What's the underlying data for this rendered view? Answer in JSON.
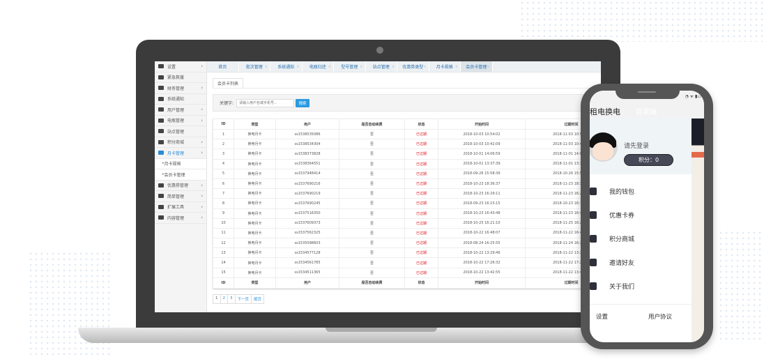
{
  "sidebar": {
    "items": [
      {
        "label": "设置",
        "chevron": true
      },
      {
        "label": "紧急救援",
        "chevron": false
      },
      {
        "label": "财务管理",
        "chevron": true
      },
      {
        "label": "系统通知",
        "chevron": false
      },
      {
        "label": "用户管理",
        "chevron": true
      },
      {
        "label": "电瓶管理",
        "chevron": true
      },
      {
        "label": "站点管理",
        "chevron": false
      },
      {
        "label": "积分商城",
        "chevron": true
      },
      {
        "label": "月卡管理",
        "chevron": true,
        "active": true
      },
      {
        "label": "月卡规格",
        "sub": true
      },
      {
        "label": "会员卡管理",
        "sub": true
      },
      {
        "label": "优惠券管理",
        "chevron": true
      },
      {
        "label": "简单管理",
        "chevron": true
      },
      {
        "label": "扩展工具",
        "chevron": true
      },
      {
        "label": "内容管理",
        "chevron": true
      }
    ]
  },
  "tabs": [
    {
      "label": "首页"
    },
    {
      "label": "批次管理"
    },
    {
      "label": "系统通知"
    },
    {
      "label": "电瓶归还"
    },
    {
      "label": "型号管理"
    },
    {
      "label": "站点管理"
    },
    {
      "label": "优惠券类型"
    },
    {
      "label": "月卡规格"
    },
    {
      "label": "会员卡管理",
      "active": true
    }
  ],
  "subtab": "会员卡列表",
  "search": {
    "label": "关键字:",
    "placeholder": "请输入用户名或手机号...",
    "button": "搜索"
  },
  "table": {
    "columns": [
      "ID",
      "类型",
      "用户",
      "是否自动续费",
      "状态",
      "开始时间",
      "过期时间"
    ],
    "rows": [
      [
        "1",
        "换电月卡",
        "ss1538535086",
        "否",
        "已过期",
        "2018-10-03 10:54:02",
        "2018-11-03 10:54:02"
      ],
      [
        "2",
        "换电月卡",
        "ss1538534304",
        "否",
        "已过期",
        "2018-10-03 10:42:09",
        "2018-11-03 10:42:09"
      ],
      [
        "3",
        "换电月卡",
        "ss1538373828",
        "否",
        "已过期",
        "2018-10-01 14:06:59",
        "2018-11-01 14:06:59"
      ],
      [
        "4",
        "换电月卡",
        "ss1538364551",
        "否",
        "已过期",
        "2018-10-01 13:37:39",
        "2018-11-01 13:37:39"
      ],
      [
        "5",
        "换电月卡",
        "ss1537948414",
        "否",
        "已过期",
        "2018-09-26 15:58:39",
        "2018-10-26 15:58:39"
      ],
      [
        "6",
        "换电月卡",
        "ss1537690216",
        "否",
        "已过期",
        "2018-10-23 18:36:37",
        "2018-11-23 18:36:37"
      ],
      [
        "7",
        "换电月卡",
        "ss1537690219",
        "否",
        "已过期",
        "2018-10-23 16:29:11",
        "2018-11-23 16:29:11"
      ],
      [
        "8",
        "换电月卡",
        "ss1537690245",
        "否",
        "已过期",
        "2018-09-23 16:15:15",
        "2018-10-23 16:15:15"
      ],
      [
        "9",
        "换电月卡",
        "ss1537516350",
        "否",
        "已过期",
        "2018-10-23 16:43:48",
        "2018-11-23 16:43:48"
      ],
      [
        "10",
        "换电月卡",
        "ss1537609373",
        "否",
        "已过期",
        "2018-10-25 16:21:10",
        "2018-11-25 16:21:10"
      ],
      [
        "11",
        "换电月卡",
        "ss1537562325",
        "否",
        "已过期",
        "2018-10-22 16:48:07",
        "2018-11-22 16:48:07"
      ],
      [
        "12",
        "换电月卡",
        "ss1535098603",
        "否",
        "已过期",
        "2018-08-24 16:25:55",
        "2018-11-24 16:25:55"
      ],
      [
        "13",
        "换电月卡",
        "ss1534577128",
        "否",
        "已过期",
        "2018-10-22 13:29:46",
        "2018-11-22 13:29:46"
      ],
      [
        "14",
        "换电月卡",
        "ss1534561785",
        "否",
        "已过期",
        "2018-10-22 17:26:32",
        "2018-11-22 17:26:32"
      ],
      [
        "15",
        "换电月卡",
        "ss1534511365",
        "否",
        "已过期",
        "2018-10-22 13:42:55",
        "2018-11-22 13:42:55"
      ]
    ]
  },
  "pager": [
    "1",
    "2",
    "3",
    "下一页",
    "尾页"
  ],
  "phone": {
    "title": "租电换电",
    "biz": "商家端",
    "login": "请先登录",
    "points": "积分：0",
    "menu": [
      {
        "label": "我的钱包",
        "icon": "wallet-icon"
      },
      {
        "label": "优惠卡券",
        "icon": "coupon-icon"
      },
      {
        "label": "积分商城",
        "icon": "store-icon"
      },
      {
        "label": "邀请好友",
        "icon": "invite-icon"
      },
      {
        "label": "关于我们",
        "icon": "info-icon"
      }
    ],
    "settings": "设置",
    "agreement": "用户协议"
  },
  "colors": {
    "accent": "#2c9ae0",
    "expired": "#e0141e",
    "laptop": "#3b3b3b",
    "phone": "#555555"
  }
}
